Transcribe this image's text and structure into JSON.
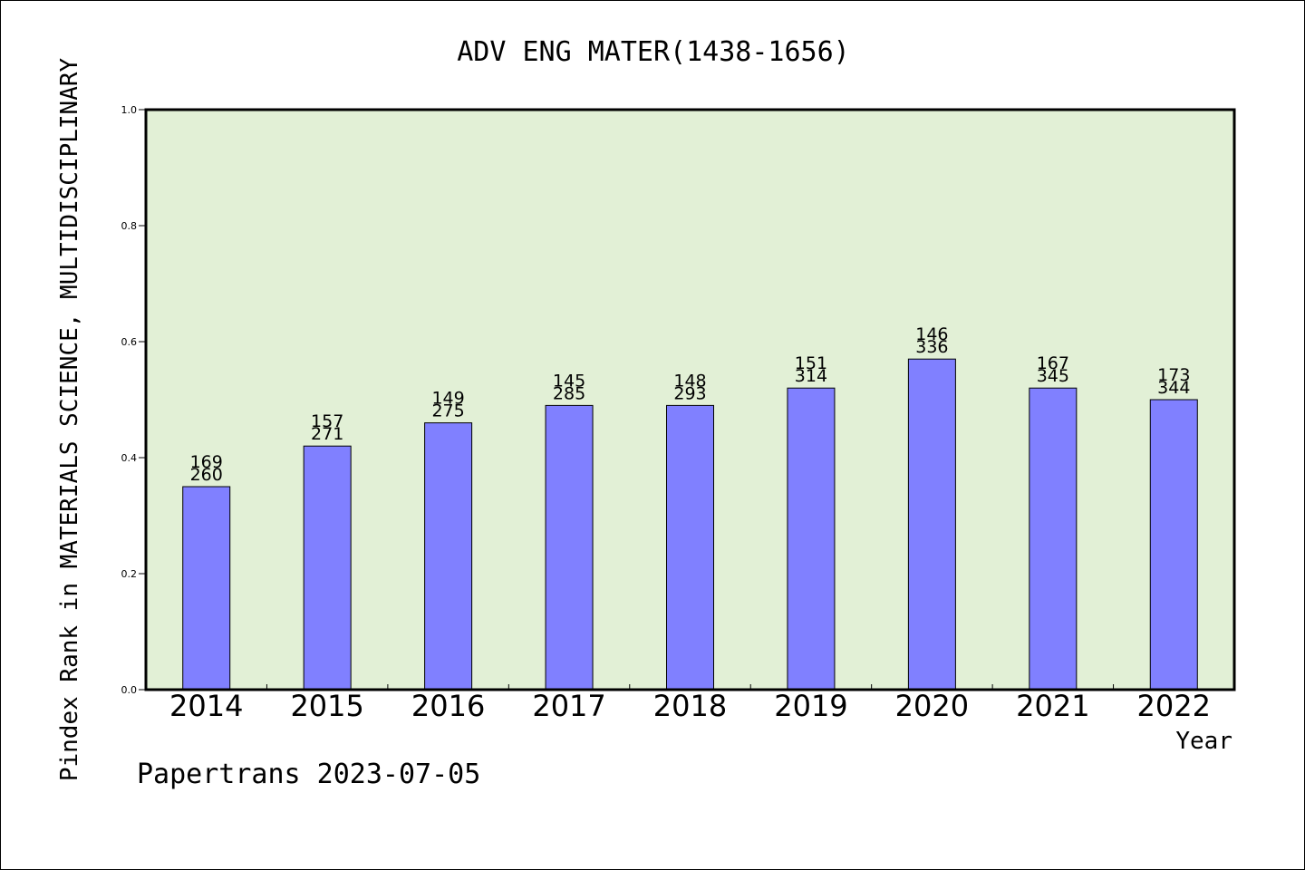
{
  "chart_data": {
    "type": "bar",
    "title": "ADV ENG MATER(1438-1656)",
    "xlabel": "Year",
    "ylabel": "Pindex Rank in MATERIALS SCIENCE, MULTIDISCIPLINARY",
    "categories": [
      "2014",
      "2015",
      "2016",
      "2017",
      "2018",
      "2019",
      "2020",
      "2021",
      "2022"
    ],
    "values": [
      0.35,
      0.42,
      0.46,
      0.49,
      0.49,
      0.52,
      0.57,
      0.52,
      0.5
    ],
    "labels_top": [
      "169",
      "157",
      "149",
      "145",
      "148",
      "151",
      "146",
      "167",
      "173"
    ],
    "labels_bottom": [
      "260",
      "271",
      "275",
      "285",
      "293",
      "314",
      "336",
      "345",
      "344"
    ],
    "ylim": [
      0,
      1.0
    ],
    "yticks": [
      "0.0",
      "0.2",
      "0.4",
      "0.6",
      "0.8",
      "1.0"
    ],
    "grid": false,
    "colors": {
      "plot_background": "#e2f0d6",
      "bar_fill": "#8080ff",
      "bar_stroke": "#000000"
    }
  },
  "footer": {
    "text": "Papertrans 2023-07-05"
  }
}
